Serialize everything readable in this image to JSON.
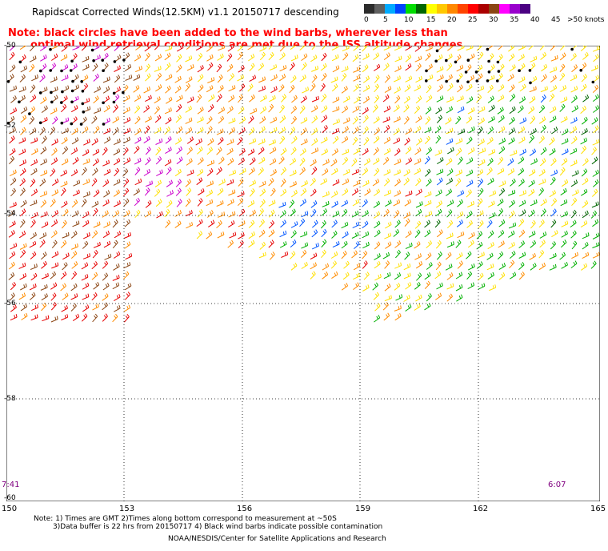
{
  "header": {
    "title": "Rapidscat Corrected Winds(12.5KM) v1.1 20150717 descending"
  },
  "note": {
    "line1": "Note: black circles have been added to the wind barbs, wherever less than",
    "line2": "optimal wind retrieval conditions are met due to the ISS altitude changes"
  },
  "legend": {
    "colors": [
      "#2c2c2c",
      "#606060",
      "#00aaff",
      "#0044ff",
      "#00dd00",
      "#006600",
      "#ffff00",
      "#ffc800",
      "#ff8800",
      "#ff4400",
      "#ff0000",
      "#aa0000",
      "#8b4513",
      "#ff00ff",
      "#9900cc",
      "#4b0082"
    ],
    "labels": [
      "0",
      "5",
      "10",
      "15",
      "20",
      "25",
      "30",
      "35",
      "40",
      "45",
      ">50 knots"
    ]
  },
  "axes": {
    "x_ticks": [
      "150",
      "153",
      "156",
      "159",
      "162",
      "165"
    ],
    "y_ticks": [
      "-50",
      "-52",
      "-54",
      "-56",
      "-58",
      "-60"
    ]
  },
  "times": {
    "left": "7:41",
    "right": "6:07"
  },
  "footer": {
    "note_line1": "Note: 1) Times are GMT 2)Times along bottom correspond to measurement at ~50S",
    "note_line2": "3)Data buffer is 22 hrs from 20150717 4) Black wind barbs indicate possible contamination",
    "credit": "NOAA/NESDIS/Center for Satellite Applications and Research"
  },
  "map": {
    "palette": {
      "yellow": "#ffe000",
      "orange": "#ff8c00",
      "red": "#e60000",
      "brown": "#8b4513",
      "magenta": "#cc00cc",
      "green": "#00b000",
      "darkgreen": "#006600",
      "blue": "#0055ff",
      "black": "#000000"
    }
  }
}
